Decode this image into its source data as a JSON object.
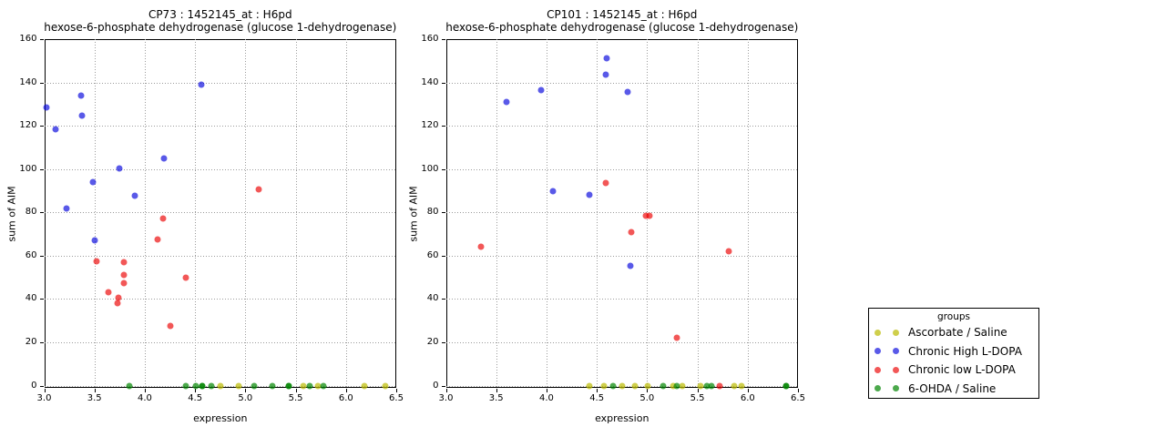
{
  "figure": {
    "background": "#ffffff",
    "legend": {
      "title": "groups",
      "entries": [
        {
          "label": "Ascorbate / Saline",
          "color": "#bbbb00",
          "alpha": 0.7
        },
        {
          "label": "Chronic High L-DOPA",
          "color": "#0000dc",
          "alpha": 0.65
        },
        {
          "label": "Chronic low L-DOPA",
          "color": "#eb0000",
          "alpha": 0.66
        },
        {
          "label": "6-OHDA / Saline",
          "color": "#008400",
          "alpha": 0.7
        }
      ]
    }
  },
  "chart_data": [
    {
      "type": "scatter",
      "title": "CP73 : 1452145_at : H6pd",
      "subtitle": "hexose-6-phosphate dehydrogenase (glucose 1-dehydrogenase)",
      "xlabel": "expression",
      "ylabel": "sum of AIM",
      "xlim": [
        3.0,
        6.5
      ],
      "ylim": [
        0,
        160
      ],
      "xticks": [
        "3.0",
        "3.5",
        "4.0",
        "4.5",
        "5.0",
        "5.5",
        "6.0",
        "6.5"
      ],
      "yticks": [
        "0",
        "20",
        "40",
        "60",
        "80",
        "100",
        "120",
        "140",
        "160"
      ],
      "grid": true,
      "series": [
        {
          "name": "Ascorbate / Saline",
          "color": "#bbbb00",
          "alpha": 0.7,
          "points": [
            [
              4.75,
              0
            ],
            [
              4.93,
              0
            ],
            [
              5.58,
              0
            ],
            [
              5.72,
              0
            ],
            [
              6.18,
              0
            ],
            [
              6.39,
              0
            ]
          ]
        },
        {
          "name": "Chronic High L-DOPA",
          "color": "#0000dc",
          "alpha": 0.65,
          "points": [
            [
              3.02,
              128.5
            ],
            [
              3.11,
              118.5
            ],
            [
              3.22,
              82
            ],
            [
              3.37,
              134
            ],
            [
              3.38,
              124.5
            ],
            [
              3.48,
              94
            ],
            [
              3.5,
              67
            ],
            [
              3.75,
              100.5
            ],
            [
              3.9,
              87.5
            ],
            [
              4.19,
              105
            ],
            [
              4.56,
              139
            ]
          ]
        },
        {
          "name": "Chronic low L-DOPA",
          "color": "#eb0000",
          "alpha": 0.66,
          "points": [
            [
              3.52,
              57.5
            ],
            [
              3.64,
              43
            ],
            [
              3.73,
              38
            ],
            [
              3.74,
              40.5
            ],
            [
              3.79,
              57
            ],
            [
              3.79,
              51
            ],
            [
              3.79,
              47.5
            ],
            [
              4.13,
              67.5
            ],
            [
              4.18,
              77
            ],
            [
              4.25,
              27.5
            ],
            [
              4.41,
              50
            ],
            [
              5.13,
              90.5
            ]
          ]
        },
        {
          "name": "6-OHDA / Saline",
          "color": "#008400",
          "alpha": 0.7,
          "points": [
            [
              3.85,
              0
            ],
            [
              4.41,
              0
            ],
            [
              4.51,
              0
            ],
            [
              4.57,
              0
            ],
            [
              4.57,
              0
            ],
            [
              4.66,
              0
            ],
            [
              5.09,
              0
            ],
            [
              5.27,
              0
            ],
            [
              5.43,
              0
            ],
            [
              5.43,
              0
            ],
            [
              5.64,
              0
            ],
            [
              5.78,
              0
            ]
          ]
        }
      ]
    },
    {
      "type": "scatter",
      "title": "CP101 : 1452145_at : H6pd",
      "subtitle": "hexose-6-phosphate dehydrogenase (glucose 1-dehydrogenase)",
      "xlabel": "expression",
      "ylabel": "sum of AIM",
      "xlim": [
        3.0,
        6.5
      ],
      "ylim": [
        0,
        160
      ],
      "xticks": [
        "3.0",
        "3.5",
        "4.0",
        "4.5",
        "5.0",
        "5.5",
        "6.0",
        "6.5"
      ],
      "yticks": [
        "0",
        "20",
        "40",
        "60",
        "80",
        "100",
        "120",
        "140",
        "160"
      ],
      "grid": true,
      "series": [
        {
          "name": "Ascorbate / Saline",
          "color": "#bbbb00",
          "alpha": 0.7,
          "points": [
            [
              4.43,
              0
            ],
            [
              4.57,
              0
            ],
            [
              4.75,
              0
            ],
            [
              4.88,
              0
            ],
            [
              5.01,
              0
            ],
            [
              5.26,
              0
            ],
            [
              5.35,
              0
            ],
            [
              5.53,
              0
            ],
            [
              5.87,
              0
            ],
            [
              5.94,
              0
            ]
          ]
        },
        {
          "name": "Chronic High L-DOPA",
          "color": "#0000dc",
          "alpha": 0.65,
          "points": [
            [
              3.6,
              131
            ],
            [
              3.95,
              136.5
            ],
            [
              4.06,
              90
            ],
            [
              4.43,
              88
            ],
            [
              4.59,
              143.5
            ],
            [
              4.6,
              151
            ],
            [
              4.81,
              135.5
            ],
            [
              4.83,
              55.5
            ]
          ]
        },
        {
          "name": "Chronic low L-DOPA",
          "color": "#eb0000",
          "alpha": 0.66,
          "points": [
            [
              3.35,
              64
            ],
            [
              4.59,
              93.5
            ],
            [
              4.84,
              71
            ],
            [
              4.99,
              78.5
            ],
            [
              5.02,
              78.5
            ],
            [
              5.3,
              22
            ],
            [
              5.72,
              0
            ],
            [
              5.81,
              62
            ]
          ]
        },
        {
          "name": "6-OHDA / Saline",
          "color": "#008400",
          "alpha": 0.7,
          "points": [
            [
              4.66,
              0
            ],
            [
              5.16,
              0
            ],
            [
              5.3,
              0
            ],
            [
              5.59,
              0
            ],
            [
              5.64,
              0
            ],
            [
              6.38,
              0
            ],
            [
              6.38,
              0
            ]
          ]
        }
      ]
    }
  ]
}
